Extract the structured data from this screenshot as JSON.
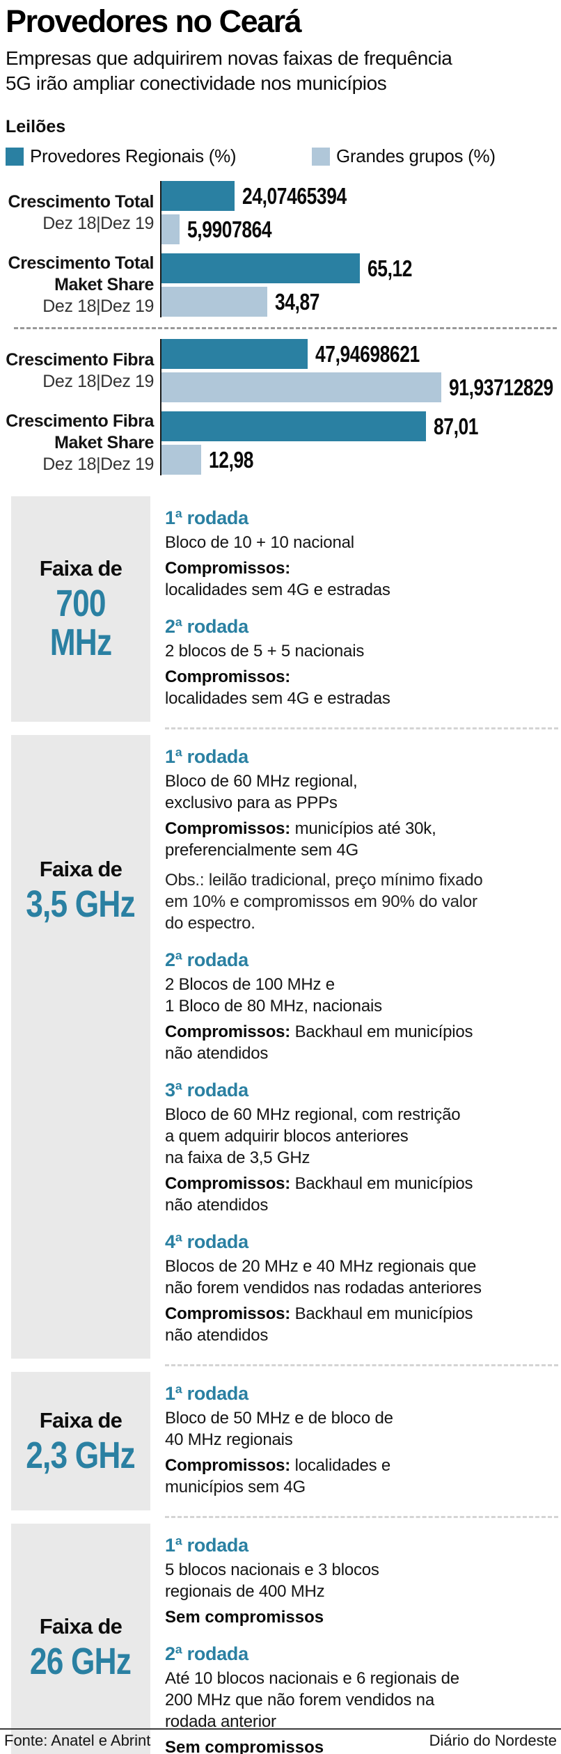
{
  "header": {
    "title": "Provedores no Ceará",
    "subtitle": "Empresas que adquirirem novas faixas de frequência\n5G irão ampliar conectividade nos municípios"
  },
  "colors": {
    "accent_teal": "#2a80a2",
    "light_blue": "#b0c7d9",
    "box_gray": "#e9e9e9"
  },
  "chart": {
    "label": "Leilões",
    "legend": [
      {
        "label": "Provedores Regionais (%)",
        "series": "regional",
        "color": "#2a80a2"
      },
      {
        "label": "Grandes grupos (%)",
        "series": "grandes",
        "color": "#b0c7d9"
      }
    ],
    "colors": {
      "regional": "#2a80a2",
      "grandes": "#b0c7d9"
    },
    "scale": {
      "max": 91.94,
      "max_percent": 70
    },
    "halves": [
      {
        "groups": [
          {
            "name": "Crescimento Total",
            "dates": "Dez 18|Dez 19",
            "bars": [
              {
                "series": "regional",
                "value": 24.07465394,
                "label": "24,07465394"
              },
              {
                "series": "grandes",
                "value": 5.9907864,
                "label": "5,9907864"
              }
            ]
          },
          {
            "name": "Crescimento Total\nMaket Share",
            "dates": "Dez 18|Dez 19",
            "bars": [
              {
                "series": "regional",
                "value": 65.12,
                "label": "65,12"
              },
              {
                "series": "grandes",
                "value": 34.87,
                "label": "34,87"
              }
            ]
          }
        ]
      },
      {
        "groups": [
          {
            "name": "Crescimento Fibra",
            "dates": "Dez 18|Dez 19",
            "bars": [
              {
                "series": "regional",
                "value": 47.94698621,
                "label": "47,94698621"
              },
              {
                "series": "grandes",
                "value": 91.93712829,
                "label": "91,93712829"
              }
            ]
          },
          {
            "name": "Crescimento Fibra\nMaket Share",
            "dates": "Dez 18|Dez 19",
            "bars": [
              {
                "series": "regional",
                "value": 87.01,
                "label": "87,01"
              },
              {
                "series": "grandes",
                "value": 12.98,
                "label": "12,98"
              }
            ]
          }
        ]
      }
    ]
  },
  "chart_data": {
    "type": "bar",
    "orientation": "horizontal",
    "title": "Leilões",
    "legend": [
      "Provedores Regionais (%)",
      "Grandes grupos (%)"
    ],
    "legend_position": "top",
    "categories": [
      "Crescimento Total Dez 18|Dez 19",
      "Crescimento Total Maket Share Dez 18|Dez 19",
      "Crescimento Fibra Dez 18|Dez 19",
      "Crescimento Fibra Maket Share Dez 18|Dez 19"
    ],
    "series": [
      {
        "name": "Provedores Regionais (%)",
        "color": "#2a80a2",
        "values": [
          24.07465394,
          65.12,
          47.94698621,
          87.01
        ]
      },
      {
        "name": "Grandes grupos (%)",
        "color": "#b0c7d9",
        "values": [
          5.9907864,
          34.87,
          91.93712829,
          12.98
        ]
      }
    ],
    "data_labels": [
      [
        "24,07465394",
        "65,12",
        "47,94698621",
        "87,01"
      ],
      [
        "5,9907864",
        "34,87",
        "91,93712829",
        "12,98"
      ]
    ],
    "xlim": [
      0,
      100
    ],
    "grid": false
  },
  "sections": [
    {
      "prefix": "Faixa de",
      "band": "700 MHz",
      "box_align": "center",
      "rounds": [
        {
          "title": "1ª rodada",
          "desc": "Bloco de 10 + 10 nacional",
          "commit_label": "Compromissos:",
          "commit_text": "localidades sem 4G e estradas",
          "commit_block": true
        },
        {
          "title": "2ª rodada",
          "desc": "2 blocos de 5 + 5 nacionais",
          "commit_label": "Compromissos:",
          "commit_text": "localidades sem 4G e estradas",
          "commit_block": true
        }
      ]
    },
    {
      "prefix": "Faixa de",
      "band": "3,5 GHz",
      "box_align": "top",
      "rounds": [
        {
          "title": "1ª rodada",
          "desc": "Bloco de 60 MHz regional,\nexclusivo para as PPPs",
          "commit_label": "Compromissos:",
          "commit_text": "municípios até 30k,\npreferencialmente sem 4G",
          "obs": "Obs.: leilão tradicional, preço mínimo fixado\nem 10% e compromissos em 90% do valor\ndo espectro."
        },
        {
          "title": "2ª rodada",
          "desc": "2 Blocos de 100 MHz e\n1 Bloco de 80 MHz, nacionais",
          "commit_label": "Compromissos:",
          "commit_text": "Backhaul em municípios\nnão atendidos"
        },
        {
          "title": "3ª rodada",
          "desc": "Bloco de 60 MHz regional, com restrição\na quem adquirir blocos anteriores\nna faixa de 3,5 GHz",
          "commit_label": "Compromissos:",
          "commit_text": "Backhaul em municípios\nnão atendidos"
        },
        {
          "title": "4ª rodada",
          "desc": "Blocos de 20 MHz e 40 MHz regionais que\nnão forem vendidos nas rodadas anteriores",
          "commit_label": "Compromissos:",
          "commit_text": "Backhaul em municípios\nnão atendidos"
        }
      ]
    },
    {
      "prefix": "Faixa de",
      "band": "2,3 GHz",
      "box_align": "center",
      "rounds": [
        {
          "title": "1ª rodada",
          "desc": "Bloco de 50 MHz e de bloco de\n40 MHz regionais",
          "commit_label": "Compromissos:",
          "commit_text": "localidades e\nmunicípios sem 4G"
        }
      ]
    },
    {
      "prefix": "Faixa de",
      "band": "26 GHz",
      "box_align": "center",
      "rounds": [
        {
          "title": "1ª rodada",
          "desc": "5 blocos nacionais e 3 blocos\nregionais de 400 MHz",
          "no_commit": "Sem compromissos"
        },
        {
          "title": "2ª rodada",
          "desc": "Até 10 blocos nacionais e 6 regionais de\n200 MHz que não forem vendidos na\nrodada anterior",
          "no_commit": "Sem compromissos"
        }
      ]
    }
  ],
  "footer": {
    "source": "Fonte: Anatel e Abrint",
    "credit": "Diário do Nordeste"
  }
}
